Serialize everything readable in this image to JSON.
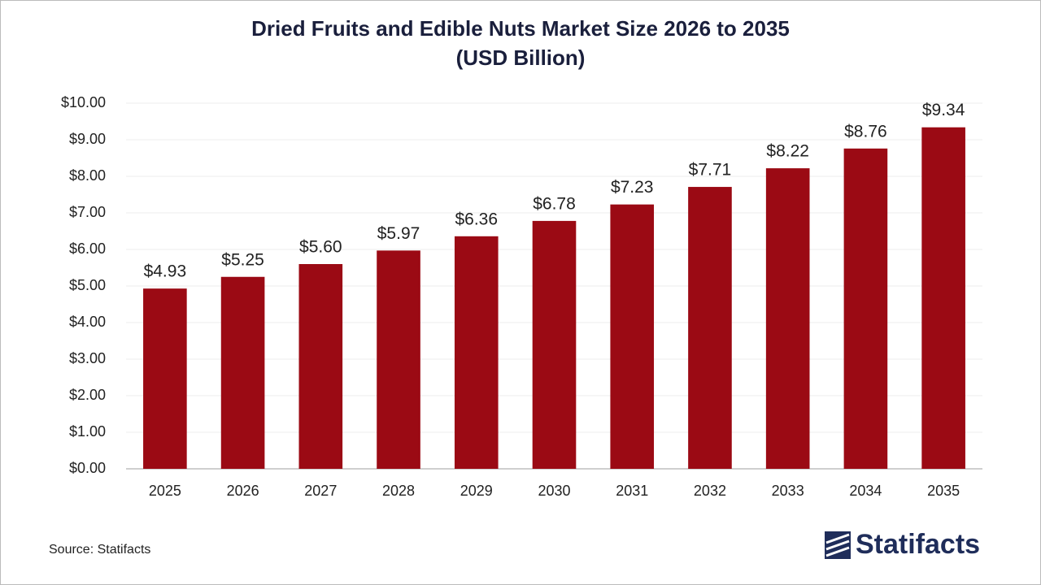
{
  "chart_data": {
    "type": "bar",
    "title": "Dried Fruits and Edible Nuts Market Size 2026 to 2035",
    "subtitle": "(USD Billion)",
    "categories": [
      "2025",
      "2026",
      "2027",
      "2028",
      "2029",
      "2030",
      "2031",
      "2032",
      "2033",
      "2034",
      "2035"
    ],
    "values": [
      4.93,
      5.25,
      5.6,
      5.97,
      6.36,
      6.78,
      7.23,
      7.71,
      8.22,
      8.76,
      9.34
    ],
    "value_labels": [
      "$4.93",
      "$5.25",
      "$5.60",
      "$5.97",
      "$6.36",
      "$6.78",
      "$7.23",
      "$7.71",
      "$8.22",
      "$8.76",
      "$9.34"
    ],
    "color": "#9b0a14",
    "ylim": [
      0,
      10
    ],
    "yticks": [
      {
        "value": 0,
        "label": "$0.00"
      },
      {
        "value": 1,
        "label": "$1.00"
      },
      {
        "value": 2,
        "label": "$2.00"
      },
      {
        "value": 3,
        "label": "$3.00"
      },
      {
        "value": 4,
        "label": "$4.00"
      },
      {
        "value": 5,
        "label": "$5.00"
      },
      {
        "value": 6,
        "label": "$6.00"
      },
      {
        "value": 7,
        "label": "$7.00"
      },
      {
        "value": 8,
        "label": "$8.00"
      },
      {
        "value": 9,
        "label": "$9.00"
      },
      {
        "value": 10,
        "label": "$10.00"
      }
    ],
    "grid": true
  },
  "source": "Source: Statifacts",
  "logo": "Statifacts"
}
